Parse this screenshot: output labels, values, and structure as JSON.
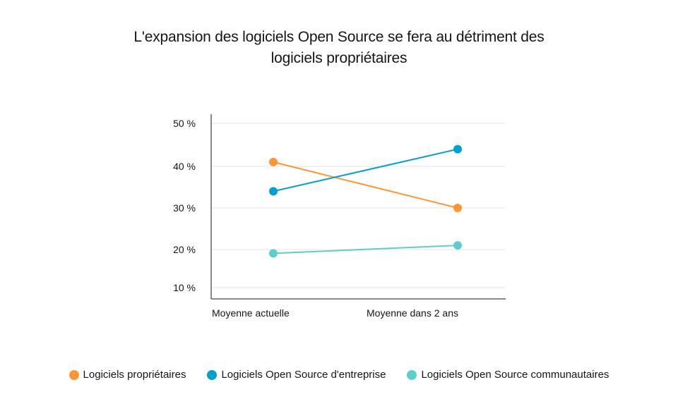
{
  "chart_data": {
    "type": "line",
    "title_lines": [
      "L'expansion des logiciels Open Source se fera au détriment des",
      "logiciels propriétaires"
    ],
    "categories": [
      "Moyenne actuelle",
      "Moyenne dans 2 ans"
    ],
    "y_ticks": [
      10,
      20,
      30,
      40,
      50
    ],
    "y_tick_labels": [
      "10 %",
      "20 %",
      "30 %",
      "40 %",
      "50 %"
    ],
    "ylim": [
      10,
      50
    ],
    "grid": true,
    "legend_position": "bottom",
    "series": [
      {
        "name": "Logiciels propriétaires",
        "values": [
          41,
          30
        ],
        "color": "#FF9533"
      },
      {
        "name": "Logiciels Open Source d'entreprise",
        "values": [
          34,
          44
        ],
        "color": "#009FD4"
      },
      {
        "name": "Logiciels Open Source communautaires",
        "values": [
          19,
          21
        ],
        "color": "#5BCFCB"
      }
    ]
  }
}
